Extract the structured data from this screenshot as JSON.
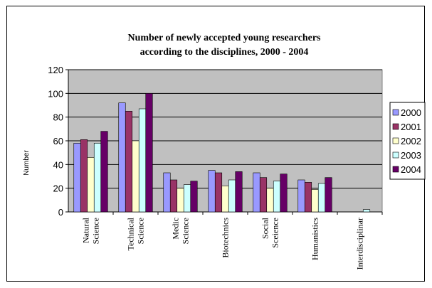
{
  "chart_data": {
    "type": "bar",
    "title_lines": [
      "Number of newly accepted young researchers",
      "according to the disciplines, 2000 - 2004"
    ],
    "ylabel": "Number",
    "xlabel": "",
    "ylim": [
      0,
      120
    ],
    "yticks": [
      0,
      20,
      40,
      60,
      80,
      100,
      120
    ],
    "grid": true,
    "legend_position": "right",
    "categories": [
      [
        "Natural",
        "Science"
      ],
      [
        "Technical",
        "Science"
      ],
      [
        "Medic",
        "Science"
      ],
      [
        "Biotechnics"
      ],
      [
        "Social",
        "Sceience"
      ],
      [
        "Humanistics"
      ],
      [
        "Interdisciplinar"
      ]
    ],
    "series": [
      {
        "name": "2000",
        "color": "#9999FF",
        "values": [
          58,
          92,
          33,
          35,
          33,
          27,
          0
        ]
      },
      {
        "name": "2001",
        "color": "#993366",
        "values": [
          61,
          85,
          27,
          33,
          29,
          25,
          0
        ]
      },
      {
        "name": "2002",
        "color": "#FFFFCC",
        "values": [
          46,
          60,
          20,
          22,
          20,
          19,
          0
        ]
      },
      {
        "name": "2003",
        "color": "#CCFFFF",
        "values": [
          58,
          87,
          23,
          27,
          26,
          24,
          2
        ]
      },
      {
        "name": "2004",
        "color": "#660066",
        "values": [
          68,
          100,
          26,
          34,
          32,
          29,
          0
        ]
      }
    ],
    "plot_background": "#C0C0C0"
  }
}
